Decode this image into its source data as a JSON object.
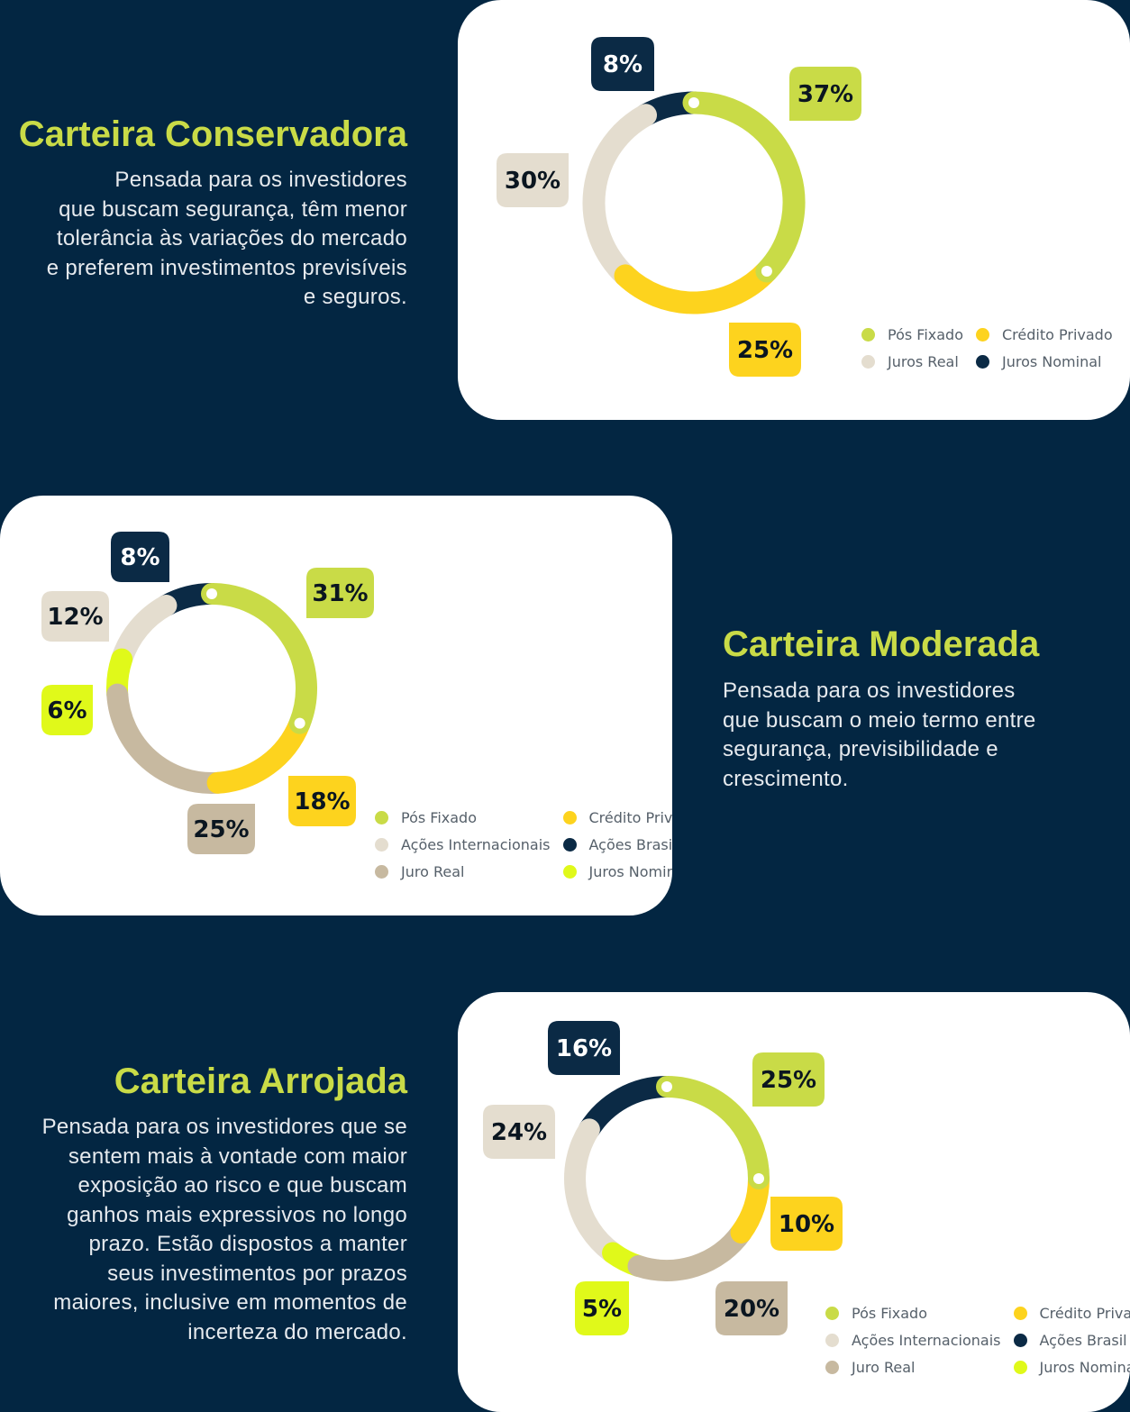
{
  "colors": {
    "background": "#032642",
    "card": "#ffffff",
    "headline": "#c9db47",
    "description": "#e6eaee",
    "pos_fixado": "#c9db47",
    "credito_privado": "#fdd31e",
    "juros_real_conservadora": "#e4ddcf",
    "juros_nominal_conservadora": "#0b2a45",
    "acoes_internacionais": "#e4ddcf",
    "acoes_brasil": "#0b2a45",
    "juro_real": "#c7b9a0",
    "juros_nominal": "#e0f91a"
  },
  "sections": [
    {
      "title": "Carteira Conservadora",
      "description": [
        "Pensada para os investidores",
        "que buscam segurança, têm menor",
        "tolerância às variações do mercado",
        "e preferem investimentos previsíveis",
        "e seguros."
      ]
    },
    {
      "title": "Carteira Moderada",
      "description": [
        "Pensada para os investidores",
        "que buscam o meio termo entre",
        "segurança, previsibilidade e",
        "crescimento."
      ]
    },
    {
      "title": "Carteira Arrojada",
      "description": [
        "Pensada para os investidores que se",
        "sentem mais à vontade com maior",
        "exposição ao risco e que buscam",
        "ganhos mais expressivos no longo",
        "prazo. Estão dispostos a manter",
        "seus investimentos por prazos",
        "maiores, inclusive em momentos de",
        "incerteza do mercado."
      ]
    }
  ],
  "chart_data": [
    {
      "type": "pie",
      "title": "",
      "donut": true,
      "legend_position": "bottom-right",
      "series": [
        {
          "name": "Pós Fixado",
          "value": 37,
          "label": "37%",
          "color": "#c9db47"
        },
        {
          "name": "Crédito Privado",
          "value": 25,
          "label": "25%",
          "color": "#fdd31e"
        },
        {
          "name": "Juros Real",
          "value": 30,
          "label": "30%",
          "color": "#e4ddcf"
        },
        {
          "name": "Juros Nominal",
          "value": 8,
          "label": "8%",
          "color": "#0b2a45"
        }
      ]
    },
    {
      "type": "pie",
      "title": "",
      "donut": true,
      "legend_position": "bottom-right",
      "series": [
        {
          "name": "Pós Fixado",
          "value": 31,
          "label": "31%",
          "color": "#c9db47"
        },
        {
          "name": "Crédito Privado",
          "value": 18,
          "label": "18%",
          "color": "#fdd31e"
        },
        {
          "name": "Juro Real",
          "value": 25,
          "label": "25%",
          "color": "#c7b9a0"
        },
        {
          "name": "Juros Nominal",
          "value": 6,
          "label": "6%",
          "color": "#e0f91a"
        },
        {
          "name": "Ações Internacionais",
          "value": 12,
          "label": "12%",
          "color": "#e4ddcf"
        },
        {
          "name": "Ações Brasil",
          "value": 8,
          "label": "8%",
          "color": "#0b2a45"
        }
      ]
    },
    {
      "type": "pie",
      "title": "",
      "donut": true,
      "legend_position": "bottom-right",
      "series": [
        {
          "name": "Pós Fixado",
          "value": 25,
          "label": "25%",
          "color": "#c9db47"
        },
        {
          "name": "Crédito Privado",
          "value": 10,
          "label": "10%",
          "color": "#fdd31e"
        },
        {
          "name": "Juro Real",
          "value": 20,
          "label": "20%",
          "color": "#c7b9a0"
        },
        {
          "name": "Juros Nominal",
          "value": 5,
          "label": "5%",
          "color": "#e0f91a"
        },
        {
          "name": "Ações Internacionais",
          "value": 24,
          "label": "24%",
          "color": "#e4ddcf"
        },
        {
          "name": "Ações Brasil",
          "value": 16,
          "label": "16%",
          "color": "#0b2a45"
        }
      ]
    }
  ],
  "legends": [
    [
      "Pós Fixado",
      "Crédito Privado",
      "Juros Real",
      "Juros Nominal"
    ],
    [
      "Pós Fixado",
      "Crédito Privado",
      "Ações Internacionais",
      "Ações Brasil",
      "Juro Real",
      "Juros Nominal"
    ],
    [
      "Pós Fixado",
      "Crédito Privado",
      "Ações Internacionais",
      "Ações Brasil",
      "Juro Real",
      "Juros Nominal"
    ]
  ]
}
